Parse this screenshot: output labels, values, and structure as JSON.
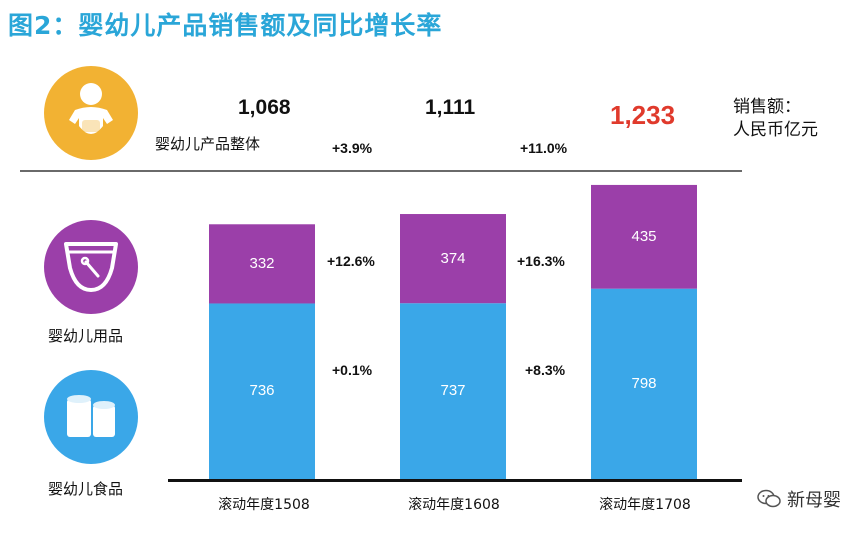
{
  "title": "图2：婴幼儿产品销售额及同比增长率",
  "unit_label_line1": "销售额：",
  "unit_label_line2": "人民币亿元",
  "segments": {
    "total": "婴幼儿产品整体",
    "goods": "婴幼儿用品",
    "food": "婴幼儿食品"
  },
  "totals": [
    "1,068",
    "1,111",
    "1,233"
  ],
  "growth": {
    "total": [
      "+3.9%",
      "+11.0%"
    ],
    "goods": [
      "+12.6%",
      "+16.3%"
    ],
    "food": [
      "+0.1%",
      "+8.3%"
    ]
  },
  "watermark": "新母婴",
  "colors": {
    "title": "#2aa6d8",
    "total_circle": "#f2b233",
    "goods": "#9b3fa9",
    "food": "#3aa7e8",
    "highlight": "#e03a2c"
  },
  "chart_data": {
    "type": "bar",
    "stacked": true,
    "categories": [
      "滚动年度1508",
      "滚动年度1608",
      "滚动年度1708"
    ],
    "series": [
      {
        "name": "婴幼儿食品",
        "values": [
          736,
          737,
          798
        ],
        "labels": [
          "736",
          "737",
          "798"
        ]
      },
      {
        "name": "婴幼儿用品",
        "values": [
          332,
          374,
          435
        ],
        "labels": [
          "332",
          "374",
          "435"
        ]
      }
    ],
    "totals": [
      1068,
      1111,
      1233
    ]
  }
}
